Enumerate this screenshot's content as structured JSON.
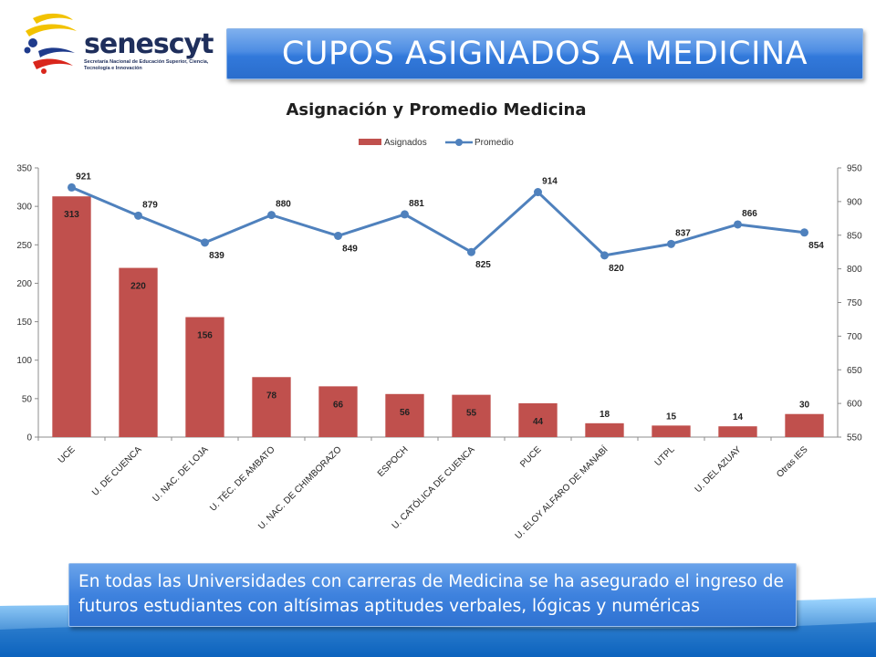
{
  "slide": {
    "title": "CUPOS ASIGNADOS A MEDICINA",
    "logo": {
      "wordmark": "senescyt",
      "subtitle": "Secretaría Nacional de Educación Superior, Ciencia, Tecnología e Innovación",
      "colors": [
        "#f2c200",
        "#1f3b8c",
        "#d9261c"
      ]
    },
    "note": "En todas las Universidades con carreras de Medicina se ha asegurado el ingreso de futuros estudiantes con altísimas aptitudes verbales, lógicas y numéricas",
    "accent_color": "#3a7fdc"
  },
  "chart_data": {
    "type": "bar",
    "title": "Asignación y Promedio Medicina",
    "categories": [
      "UCE",
      "U. DE CUENCA",
      "U. NAC. DE LOJA",
      "U. TÉC. DE AMBATO",
      "U. NAC. DE CHIMBORAZO",
      "ESPOCH",
      "U. CATÓLICA DE CUENCA",
      "PUCE",
      "U. ELOY ALFARO DE MANABÍ",
      "UTPL",
      "U. DEL AZUAY",
      "Otras IES"
    ],
    "series": [
      {
        "name": "Asignados",
        "type": "bar",
        "axis": "left",
        "color": "#c0504d",
        "values": [
          313,
          220,
          156,
          78,
          66,
          56,
          55,
          44,
          18,
          15,
          14,
          30
        ]
      },
      {
        "name": "Promedio",
        "type": "line",
        "axis": "right",
        "color": "#4f81bd",
        "values": [
          921,
          879,
          839,
          880,
          849,
          881,
          825,
          914,
          820,
          837,
          866,
          854
        ]
      }
    ],
    "y_left": {
      "min": 0,
      "max": 350,
      "ticks": [
        0,
        50,
        100,
        150,
        200,
        250,
        300,
        350
      ]
    },
    "y_right": {
      "min": 550,
      "max": 950,
      "ticks": [
        550,
        600,
        650,
        700,
        750,
        800,
        850,
        900,
        950
      ]
    },
    "legend": {
      "position": "top",
      "items": [
        "Asignados",
        "Promedio"
      ]
    },
    "grid": false
  }
}
